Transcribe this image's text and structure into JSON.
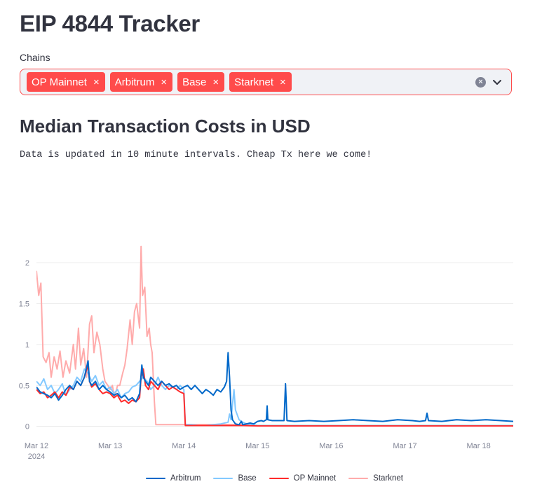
{
  "app": {
    "title": "EIP 4844 Tracker"
  },
  "chains_select": {
    "label": "Chains",
    "selected": [
      "OP Mainnet",
      "Arbitrum",
      "Base",
      "Starknet"
    ],
    "remove_glyph": "×",
    "clear_glyph": "×",
    "accent_color": "#ff4b4b"
  },
  "section": {
    "title": "Median Transaction Costs in USD",
    "caption": "Data is updated in 10 minute intervals. Cheap Tx here we come!"
  },
  "chart_data": {
    "type": "line",
    "title": "",
    "xlabel": "",
    "ylabel": "",
    "x_ticks": [
      {
        "label": "Mar 12",
        "sublabel": "2024",
        "day": 12
      },
      {
        "label": "Mar 13",
        "sublabel": "",
        "day": 13
      },
      {
        "label": "Mar 14",
        "sublabel": "",
        "day": 14
      },
      {
        "label": "Mar 15",
        "sublabel": "",
        "day": 15
      },
      {
        "label": "Mar 16",
        "sublabel": "",
        "day": 16
      },
      {
        "label": "Mar 17",
        "sublabel": "",
        "day": 17
      },
      {
        "label": "Mar 18",
        "sublabel": "",
        "day": 18
      }
    ],
    "y_ticks": [
      0,
      0.5,
      1,
      1.5,
      2
    ],
    "y_tick_labels": [
      "0",
      "0.5",
      "1",
      "1.5",
      "2"
    ],
    "xlim_days": [
      12.0,
      18.47
    ],
    "ylim": [
      -0.08,
      2.3
    ],
    "grid": true,
    "legend_position": "bottom-center",
    "series": [
      {
        "name": "Starknet",
        "color": "#ffabab",
        "points": [
          [
            12.0,
            1.9
          ],
          [
            12.03,
            1.6
          ],
          [
            12.06,
            1.75
          ],
          [
            12.09,
            0.85
          ],
          [
            12.13,
            0.78
          ],
          [
            12.17,
            0.9
          ],
          [
            12.2,
            0.6
          ],
          [
            12.24,
            0.85
          ],
          [
            12.28,
            0.7
          ],
          [
            12.32,
            0.92
          ],
          [
            12.36,
            0.6
          ],
          [
            12.4,
            0.8
          ],
          [
            12.45,
            0.65
          ],
          [
            12.5,
            1.0
          ],
          [
            12.53,
            0.7
          ],
          [
            12.57,
            1.2
          ],
          [
            12.6,
            0.75
          ],
          [
            12.64,
            0.95
          ],
          [
            12.68,
            0.6
          ],
          [
            12.72,
            1.25
          ],
          [
            12.75,
            1.35
          ],
          [
            12.78,
            0.9
          ],
          [
            12.82,
            1.15
          ],
          [
            12.86,
            1.0
          ],
          [
            12.9,
            0.7
          ],
          [
            12.93,
            0.55
          ],
          [
            12.97,
            0.5
          ],
          [
            13.0,
            0.45
          ],
          [
            13.03,
            0.5
          ],
          [
            13.06,
            0.35
          ],
          [
            13.1,
            0.5
          ],
          [
            13.13,
            0.5
          ],
          [
            13.17,
            0.65
          ],
          [
            13.2,
            0.75
          ],
          [
            13.23,
            0.95
          ],
          [
            13.27,
            1.3
          ],
          [
            13.3,
            1.0
          ],
          [
            13.33,
            1.4
          ],
          [
            13.36,
            1.5
          ],
          [
            13.4,
            1.2
          ],
          [
            13.42,
            2.2
          ],
          [
            13.44,
            1.6
          ],
          [
            13.47,
            1.7
          ],
          [
            13.5,
            1.1
          ],
          [
            13.53,
            1.2
          ],
          [
            13.55,
            1.0
          ],
          [
            13.57,
            0.9
          ],
          [
            13.6,
            0.3
          ],
          [
            13.62,
            0.02
          ],
          [
            13.7,
            0.02
          ],
          [
            14.0,
            0.02
          ],
          [
            14.2,
            0.02
          ],
          [
            14.35,
            0.02
          ],
          [
            14.5,
            0.02
          ],
          [
            14.7,
            0.02
          ],
          [
            14.9,
            0.02
          ],
          [
            15.0,
            0.01
          ],
          [
            15.5,
            0.01
          ],
          [
            16.0,
            0.01
          ],
          [
            16.5,
            0.01
          ],
          [
            17.0,
            0.01
          ],
          [
            17.5,
            0.01
          ],
          [
            18.0,
            0.01
          ],
          [
            18.47,
            0.01
          ]
        ]
      },
      {
        "name": "Base",
        "color": "#83c9ff",
        "points": [
          [
            12.0,
            0.55
          ],
          [
            12.05,
            0.5
          ],
          [
            12.1,
            0.58
          ],
          [
            12.15,
            0.45
          ],
          [
            12.2,
            0.5
          ],
          [
            12.25,
            0.4
          ],
          [
            12.3,
            0.45
          ],
          [
            12.35,
            0.52
          ],
          [
            12.4,
            0.38
          ],
          [
            12.45,
            0.45
          ],
          [
            12.5,
            0.5
          ],
          [
            12.55,
            0.6
          ],
          [
            12.6,
            0.55
          ],
          [
            12.65,
            0.7
          ],
          [
            12.7,
            0.65
          ],
          [
            12.75,
            0.55
          ],
          [
            12.8,
            0.62
          ],
          [
            12.85,
            0.5
          ],
          [
            12.9,
            0.55
          ],
          [
            12.95,
            0.45
          ],
          [
            13.0,
            0.48
          ],
          [
            13.05,
            0.4
          ],
          [
            13.1,
            0.45
          ],
          [
            13.15,
            0.35
          ],
          [
            13.2,
            0.4
          ],
          [
            13.25,
            0.42
          ],
          [
            13.3,
            0.48
          ],
          [
            13.35,
            0.5
          ],
          [
            13.4,
            0.55
          ],
          [
            13.45,
            0.6
          ],
          [
            13.5,
            0.55
          ],
          [
            13.55,
            0.45
          ],
          [
            13.6,
            0.5
          ],
          [
            13.65,
            0.6
          ],
          [
            13.7,
            0.5
          ],
          [
            13.75,
            0.45
          ],
          [
            13.8,
            0.5
          ],
          [
            13.85,
            0.48
          ],
          [
            13.9,
            0.45
          ],
          [
            13.95,
            0.5
          ],
          [
            14.0,
            0.45
          ],
          [
            14.02,
            0.02
          ],
          [
            14.1,
            0.02
          ],
          [
            14.2,
            0.01
          ],
          [
            14.3,
            0.01
          ],
          [
            14.4,
            0.02
          ],
          [
            14.5,
            0.03
          ],
          [
            14.6,
            0.05
          ],
          [
            14.62,
            0.15
          ],
          [
            14.64,
            0.08
          ],
          [
            14.68,
            0.45
          ],
          [
            14.7,
            0.2
          ],
          [
            14.75,
            0.08
          ],
          [
            14.8,
            0.05
          ],
          [
            14.85,
            0.03
          ],
          [
            14.9,
            0.02
          ],
          [
            15.0,
            0.01
          ],
          [
            15.5,
            0.01
          ],
          [
            16.0,
            0.01
          ],
          [
            16.5,
            0.01
          ],
          [
            17.0,
            0.01
          ],
          [
            17.5,
            0.01
          ],
          [
            18.0,
            0.01
          ],
          [
            18.47,
            0.01
          ]
        ]
      },
      {
        "name": "OP Mainnet",
        "color": "#ff2b2b",
        "points": [
          [
            12.0,
            0.45
          ],
          [
            12.05,
            0.4
          ],
          [
            12.1,
            0.42
          ],
          [
            12.15,
            0.35
          ],
          [
            12.2,
            0.38
          ],
          [
            12.25,
            0.42
          ],
          [
            12.3,
            0.35
          ],
          [
            12.35,
            0.42
          ],
          [
            12.4,
            0.38
          ],
          [
            12.45,
            0.48
          ],
          [
            12.5,
            0.45
          ],
          [
            12.55,
            0.55
          ],
          [
            12.6,
            0.5
          ],
          [
            12.65,
            0.6
          ],
          [
            12.7,
            0.75
          ],
          [
            12.72,
            0.55
          ],
          [
            12.75,
            0.48
          ],
          [
            12.8,
            0.52
          ],
          [
            12.85,
            0.45
          ],
          [
            12.9,
            0.4
          ],
          [
            12.95,
            0.42
          ],
          [
            13.0,
            0.4
          ],
          [
            13.05,
            0.35
          ],
          [
            13.1,
            0.38
          ],
          [
            13.15,
            0.3
          ],
          [
            13.2,
            0.32
          ],
          [
            13.25,
            0.28
          ],
          [
            13.3,
            0.32
          ],
          [
            13.35,
            0.3
          ],
          [
            13.4,
            0.35
          ],
          [
            13.42,
            0.6
          ],
          [
            13.45,
            0.7
          ],
          [
            13.48,
            0.5
          ],
          [
            13.52,
            0.45
          ],
          [
            13.55,
            0.55
          ],
          [
            13.6,
            0.5
          ],
          [
            13.65,
            0.45
          ],
          [
            13.7,
            0.55
          ],
          [
            13.75,
            0.5
          ],
          [
            13.8,
            0.45
          ],
          [
            13.85,
            0.48
          ],
          [
            13.9,
            0.45
          ],
          [
            13.95,
            0.42
          ],
          [
            14.0,
            0.4
          ],
          [
            14.02,
            0.01
          ],
          [
            14.2,
            0.01
          ],
          [
            14.4,
            0.01
          ],
          [
            14.6,
            0.01
          ],
          [
            14.8,
            0.01
          ],
          [
            15.0,
            0.005
          ],
          [
            15.5,
            0.005
          ],
          [
            16.0,
            0.005
          ],
          [
            16.5,
            0.005
          ],
          [
            17.0,
            0.005
          ],
          [
            17.5,
            0.005
          ],
          [
            18.0,
            0.005
          ],
          [
            18.47,
            0.005
          ]
        ]
      },
      {
        "name": "Arbitrum",
        "color": "#0068c9",
        "points": [
          [
            12.0,
            0.48
          ],
          [
            12.05,
            0.42
          ],
          [
            12.1,
            0.4
          ],
          [
            12.15,
            0.38
          ],
          [
            12.2,
            0.35
          ],
          [
            12.25,
            0.4
          ],
          [
            12.3,
            0.32
          ],
          [
            12.35,
            0.38
          ],
          [
            12.4,
            0.45
          ],
          [
            12.45,
            0.5
          ],
          [
            12.5,
            0.45
          ],
          [
            12.55,
            0.55
          ],
          [
            12.6,
            0.5
          ],
          [
            12.65,
            0.6
          ],
          [
            12.7,
            0.8
          ],
          [
            12.72,
            0.55
          ],
          [
            12.75,
            0.5
          ],
          [
            12.8,
            0.55
          ],
          [
            12.85,
            0.45
          ],
          [
            12.9,
            0.5
          ],
          [
            12.95,
            0.45
          ],
          [
            13.0,
            0.42
          ],
          [
            13.05,
            0.38
          ],
          [
            13.1,
            0.4
          ],
          [
            13.15,
            0.35
          ],
          [
            13.2,
            0.38
          ],
          [
            13.25,
            0.32
          ],
          [
            13.3,
            0.35
          ],
          [
            13.35,
            0.3
          ],
          [
            13.4,
            0.4
          ],
          [
            13.43,
            0.75
          ],
          [
            13.45,
            0.6
          ],
          [
            13.48,
            0.55
          ],
          [
            13.52,
            0.5
          ],
          [
            13.55,
            0.6
          ],
          [
            13.6,
            0.55
          ],
          [
            13.65,
            0.5
          ],
          [
            13.7,
            0.55
          ],
          [
            13.75,
            0.5
          ],
          [
            13.8,
            0.52
          ],
          [
            13.85,
            0.48
          ],
          [
            13.9,
            0.5
          ],
          [
            13.95,
            0.45
          ],
          [
            14.0,
            0.48
          ],
          [
            14.05,
            0.5
          ],
          [
            14.1,
            0.45
          ],
          [
            14.15,
            0.5
          ],
          [
            14.2,
            0.45
          ],
          [
            14.25,
            0.4
          ],
          [
            14.3,
            0.45
          ],
          [
            14.35,
            0.42
          ],
          [
            14.4,
            0.38
          ],
          [
            14.45,
            0.45
          ],
          [
            14.5,
            0.42
          ],
          [
            14.55,
            0.48
          ],
          [
            14.58,
            0.55
          ],
          [
            14.6,
            0.9
          ],
          [
            14.62,
            0.6
          ],
          [
            14.64,
            0.2
          ],
          [
            14.66,
            0.08
          ],
          [
            14.7,
            0.03
          ],
          [
            14.75,
            0.02
          ],
          [
            14.78,
            0.06
          ],
          [
            14.8,
            0.02
          ],
          [
            14.9,
            0.04
          ],
          [
            14.95,
            0.03
          ],
          [
            15.0,
            0.06
          ],
          [
            15.05,
            0.07
          ],
          [
            15.08,
            0.06
          ],
          [
            15.12,
            0.08
          ],
          [
            15.13,
            0.25
          ],
          [
            15.14,
            0.08
          ],
          [
            15.2,
            0.07
          ],
          [
            15.3,
            0.07
          ],
          [
            15.36,
            0.07
          ],
          [
            15.38,
            0.52
          ],
          [
            15.4,
            0.07
          ],
          [
            15.5,
            0.06
          ],
          [
            15.7,
            0.07
          ],
          [
            15.9,
            0.06
          ],
          [
            16.1,
            0.07
          ],
          [
            16.3,
            0.08
          ],
          [
            16.5,
            0.07
          ],
          [
            16.7,
            0.06
          ],
          [
            16.9,
            0.08
          ],
          [
            17.1,
            0.07
          ],
          [
            17.2,
            0.06
          ],
          [
            17.28,
            0.07
          ],
          [
            17.3,
            0.16
          ],
          [
            17.32,
            0.07
          ],
          [
            17.5,
            0.06
          ],
          [
            17.7,
            0.08
          ],
          [
            17.9,
            0.07
          ],
          [
            18.1,
            0.08
          ],
          [
            18.3,
            0.07
          ],
          [
            18.47,
            0.06
          ]
        ]
      }
    ],
    "legend_order": [
      "Arbitrum",
      "Base",
      "OP Mainnet",
      "Starknet"
    ]
  }
}
